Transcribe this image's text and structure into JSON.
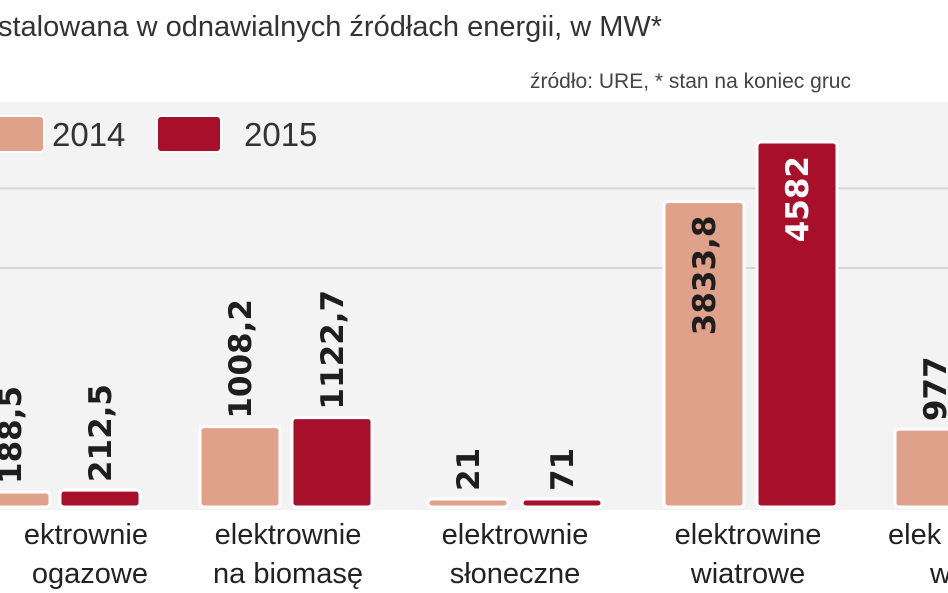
{
  "chart_data": {
    "type": "bar",
    "title": "stalowana w odnawialnych źródłach energii, w MW*",
    "source": "źródło: URE, * stan na koniec gruc",
    "ylabel": "MW",
    "ylim": [
      0,
      5000
    ],
    "grid": true,
    "gridlines": [
      3000,
      4000
    ],
    "legend_placement": "top-left",
    "categories": [
      [
        "ektrownie",
        "ogazowe"
      ],
      [
        "elektrownie",
        "na biomasę"
      ],
      [
        "elektrownie",
        "słoneczne"
      ],
      [
        "elektrowine",
        "wiatrowe"
      ],
      [
        "elek",
        "w"
      ]
    ],
    "series": [
      {
        "name": "2014",
        "color": "#dfa189",
        "values": [
          188.5,
          1008.2,
          21,
          3833.8,
          977
        ],
        "labels": [
          "188,5",
          "1008,2",
          "21",
          "3833,8",
          "977"
        ]
      },
      {
        "name": "2015",
        "color": "#a70f2b",
        "values": [
          212.5,
          1122.7,
          71,
          4582,
          null
        ],
        "labels": [
          "212,5",
          "1122,7",
          "71",
          "4582",
          null
        ]
      }
    ]
  }
}
